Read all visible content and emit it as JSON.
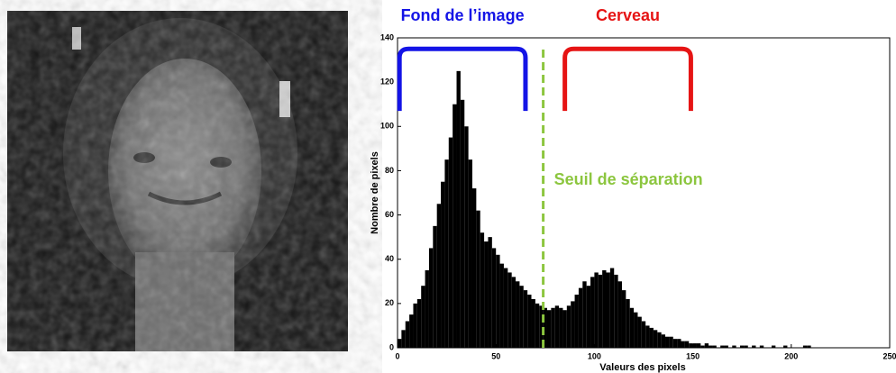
{
  "chart_data": {
    "type": "histogram",
    "xlabel": "Valeurs des pixels",
    "ylabel": "Nombre de pixels",
    "bins": [
      0,
      2,
      4,
      6,
      8,
      10,
      12,
      14,
      16,
      18,
      20,
      22,
      24,
      26,
      28,
      30,
      32,
      34,
      36,
      38,
      40,
      42,
      44,
      46,
      48,
      50,
      52,
      54,
      56,
      58,
      60,
      62,
      64,
      66,
      68,
      70,
      72,
      74,
      76,
      78,
      80,
      82,
      84,
      86,
      88,
      90,
      92,
      94,
      96,
      98,
      100,
      102,
      104,
      106,
      108,
      110,
      112,
      114,
      116,
      118,
      120,
      122,
      124,
      126,
      128,
      130,
      132,
      134,
      136,
      138,
      140,
      142,
      144,
      146,
      148,
      150,
      152,
      154,
      156,
      158,
      160,
      162,
      164,
      166,
      168,
      170,
      172,
      174,
      176,
      178,
      180,
      182,
      184,
      186,
      188,
      190,
      192,
      194,
      196,
      198,
      200,
      202,
      204,
      206,
      208,
      210
    ],
    "values": [
      4,
      8,
      12,
      15,
      20,
      22,
      28,
      35,
      45,
      55,
      65,
      75,
      85,
      95,
      110,
      125,
      112,
      100,
      85,
      72,
      62,
      52,
      48,
      50,
      45,
      42,
      38,
      36,
      34,
      32,
      30,
      28,
      26,
      24,
      22,
      20,
      19,
      18,
      17,
      18,
      19,
      18,
      17,
      19,
      21,
      24,
      27,
      30,
      28,
      32,
      34,
      33,
      35,
      34,
      36,
      33,
      30,
      26,
      22,
      18,
      16,
      14,
      12,
      10,
      9,
      8,
      7,
      6,
      5,
      5,
      4,
      4,
      3,
      3,
      2,
      2,
      2,
      1,
      2,
      1,
      1,
      0,
      1,
      1,
      0,
      1,
      0,
      1,
      1,
      0,
      1,
      0,
      1,
      0,
      0,
      1,
      0,
      0,
      1,
      0,
      0,
      0,
      0,
      1,
      1
    ],
    "color": "#000000",
    "xlim": [
      0,
      250
    ],
    "xticks": [
      0,
      50,
      100,
      150,
      200,
      250
    ],
    "ylim": [
      0,
      140
    ],
    "yticks": [
      0,
      20,
      40,
      60,
      80,
      100,
      120,
      140
    ],
    "annotations": [
      {
        "text": "Fond de l’image",
        "color": "#1414e6",
        "x": [
          1,
          65
        ],
        "y": [
          107,
          135
        ]
      },
      {
        "text": "Cerveau",
        "color": "#e61414",
        "x": [
          85,
          149
        ],
        "y": [
          107,
          135
        ]
      }
    ],
    "threshold": {
      "label": "Seuil de séparation",
      "x": 74,
      "color": "#8cc63f"
    }
  }
}
